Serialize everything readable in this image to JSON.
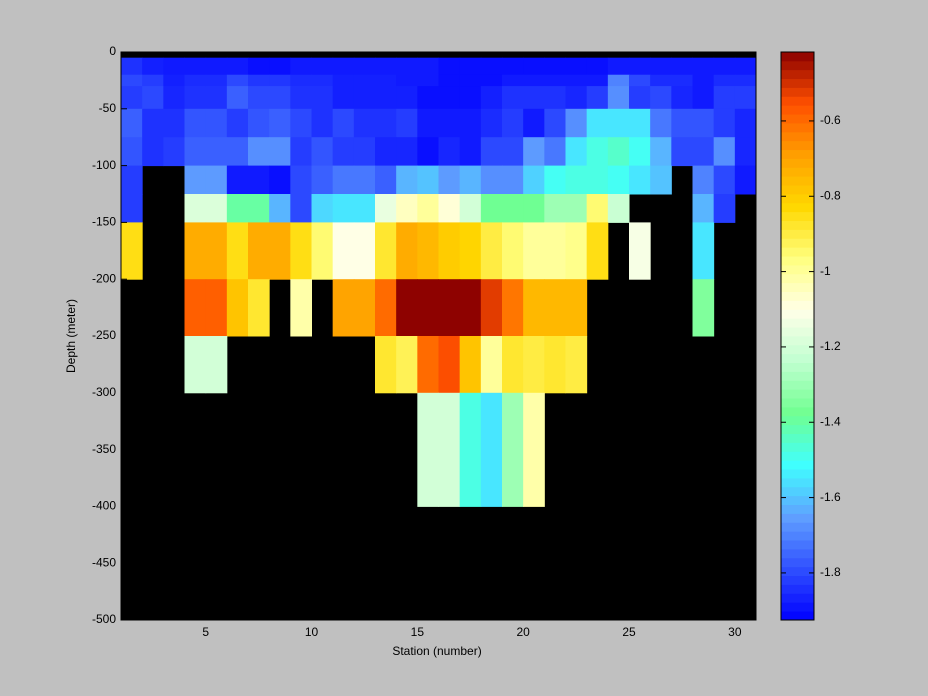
{
  "chart_data": {
    "type": "heatmap",
    "xlabel": "Station (number)",
    "ylabel": "Depth (meter)",
    "xlim": [
      1,
      31
    ],
    "xticks": [
      5,
      10,
      15,
      20,
      25,
      30
    ],
    "ylim": [
      -500,
      0
    ],
    "yticks": [
      0,
      -50,
      -100,
      -150,
      -200,
      -250,
      -300,
      -350,
      -400,
      -450,
      -500
    ],
    "x_edges": [
      1,
      2,
      3,
      4,
      5,
      6,
      7,
      8,
      9,
      10,
      11,
      12,
      13,
      14,
      15,
      16,
      17,
      18,
      19,
      20,
      21,
      22,
      23,
      24,
      25,
      26,
      27,
      28,
      29,
      30,
      31
    ],
    "y_edges": [
      0,
      -5,
      -20,
      -30,
      -50,
      -75,
      -100,
      -125,
      -150,
      -200,
      -250,
      -300,
      -400,
      -500
    ],
    "z": [
      [
        null,
        null,
        null,
        null,
        null,
        null,
        null,
        null,
        null,
        null,
        null,
        null,
        null,
        null,
        null,
        null,
        null,
        null,
        null,
        null,
        null,
        null,
        null,
        null,
        null,
        null,
        null,
        null,
        null,
        null
      ],
      [
        -1.84,
        -1.87,
        -1.88,
        -1.88,
        -1.88,
        -1.88,
        -1.9,
        -1.9,
        -1.88,
        -1.88,
        -1.88,
        -1.88,
        -1.88,
        -1.88,
        -1.88,
        -1.9,
        -1.9,
        -1.9,
        -1.9,
        -1.9,
        -1.9,
        -1.9,
        -1.9,
        -1.88,
        -1.88,
        -1.88,
        -1.88,
        -1.88,
        -1.88,
        -1.88
      ],
      [
        -1.8,
        -1.82,
        -1.87,
        -1.85,
        -1.85,
        -1.8,
        -1.83,
        -1.83,
        -1.85,
        -1.85,
        -1.87,
        -1.87,
        -1.87,
        -1.88,
        -1.88,
        -1.9,
        -1.9,
        -1.9,
        -1.88,
        -1.88,
        -1.88,
        -1.88,
        -1.88,
        -1.7,
        -1.8,
        -1.85,
        -1.85,
        -1.88,
        -1.85,
        -1.85
      ],
      [
        -1.82,
        -1.8,
        -1.86,
        -1.84,
        -1.84,
        -1.76,
        -1.8,
        -1.8,
        -1.84,
        -1.84,
        -1.87,
        -1.87,
        -1.87,
        -1.87,
        -1.9,
        -1.9,
        -1.9,
        -1.87,
        -1.84,
        -1.84,
        -1.84,
        -1.86,
        -1.82,
        -1.68,
        -1.82,
        -1.8,
        -1.86,
        -1.88,
        -1.82,
        -1.82
      ],
      [
        -1.76,
        -1.84,
        -1.84,
        -1.78,
        -1.78,
        -1.82,
        -1.78,
        -1.76,
        -1.8,
        -1.84,
        -1.8,
        -1.84,
        -1.84,
        -1.82,
        -1.88,
        -1.88,
        -1.88,
        -1.85,
        -1.82,
        -1.88,
        -1.8,
        -1.68,
        -1.55,
        -1.55,
        -1.55,
        -1.72,
        -1.78,
        -1.78,
        -1.82,
        -1.86
      ],
      [
        -1.78,
        -1.84,
        -1.82,
        -1.76,
        -1.76,
        -1.76,
        -1.68,
        -1.68,
        -1.82,
        -1.78,
        -1.82,
        -1.82,
        -1.86,
        -1.86,
        -1.9,
        -1.86,
        -1.88,
        -1.8,
        -1.8,
        -1.66,
        -1.72,
        -1.55,
        -1.48,
        -1.45,
        -1.5,
        -1.62,
        -1.8,
        -1.8,
        -1.68,
        -1.86
      ],
      [
        -1.82,
        null,
        null,
        -1.66,
        -1.66,
        -1.88,
        -1.88,
        -1.9,
        -1.8,
        -1.76,
        -1.72,
        -1.72,
        -1.76,
        -1.62,
        -1.6,
        -1.66,
        -1.62,
        -1.68,
        -1.68,
        -1.58,
        -1.5,
        -1.48,
        -1.48,
        -1.5,
        -1.55,
        -1.6,
        null,
        -1.7,
        -1.8,
        -1.88
      ],
      [
        -1.82,
        null,
        null,
        -1.18,
        -1.18,
        -1.4,
        -1.4,
        -1.62,
        -1.8,
        -1.57,
        -1.55,
        -1.55,
        -1.15,
        -1.05,
        -1.0,
        -1.08,
        -1.2,
        -1.38,
        -1.38,
        -1.38,
        -1.3,
        -1.3,
        -0.95,
        -1.22,
        null,
        null,
        null,
        -1.62,
        -1.82,
        null
      ],
      [
        -0.85,
        null,
        null,
        -0.72,
        -0.72,
        -0.85,
        -0.72,
        -0.72,
        -0.85,
        -0.95,
        -1.1,
        -1.1,
        -0.88,
        -0.72,
        -0.75,
        -0.8,
        -0.82,
        -0.9,
        -0.95,
        -1.0,
        -1.0,
        -0.98,
        -0.85,
        null,
        -1.12,
        null,
        null,
        -1.55,
        null,
        null
      ],
      [
        null,
        null,
        null,
        -0.58,
        -0.58,
        -0.78,
        -0.88,
        null,
        -1.02,
        null,
        -0.7,
        -0.7,
        -0.6,
        -0.42,
        -0.42,
        -0.42,
        -0.42,
        -0.52,
        -0.62,
        -0.75,
        -0.75,
        -0.75,
        null,
        null,
        null,
        null,
        null,
        -1.35,
        null,
        null
      ],
      [
        null,
        null,
        null,
        -1.2,
        -1.2,
        null,
        null,
        null,
        null,
        null,
        null,
        null,
        -0.88,
        -0.92,
        -0.6,
        -0.55,
        -0.78,
        -1.0,
        -0.88,
        -0.9,
        -0.88,
        -0.9,
        null,
        null,
        null,
        null,
        null,
        null,
        null,
        null
      ],
      [
        null,
        null,
        null,
        null,
        null,
        null,
        null,
        null,
        null,
        null,
        null,
        null,
        null,
        null,
        -1.2,
        -1.2,
        -1.48,
        -1.55,
        -1.3,
        -1.02,
        null,
        null,
        null,
        null,
        null,
        null,
        null,
        null,
        null,
        null
      ],
      [
        null,
        null,
        null,
        null,
        null,
        null,
        null,
        null,
        null,
        null,
        null,
        null,
        null,
        null,
        null,
        null,
        null,
        null,
        null,
        null,
        null,
        null,
        null,
        null,
        null,
        null,
        null,
        null,
        null,
        null
      ]
    ],
    "clim": [
      -1.925,
      -0.417
    ],
    "colorbar_ticks": [
      -0.6,
      -0.8,
      -1,
      -1.2,
      -1.4,
      -1.6,
      -1.8
    ],
    "colormap": [
      "#0000ff",
      "#3050ff",
      "#60a0ff",
      "#40ffff",
      "#70ff90",
      "#c0ffd0",
      "#ffffe8",
      "#ffff80",
      "#ffd800",
      "#ffa000",
      "#ff5000",
      "#8b0000"
    ]
  }
}
